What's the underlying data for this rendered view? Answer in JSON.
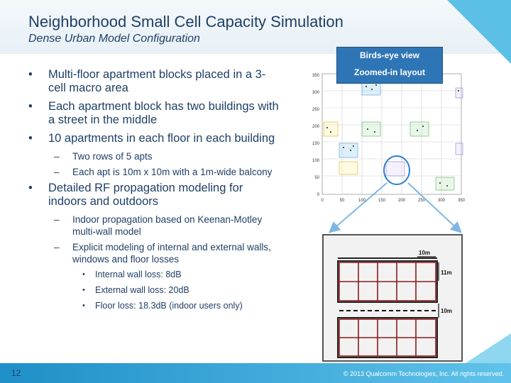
{
  "title": "Neighborhood Small Cell Capacity Simulation",
  "subtitle": "Dense Urban Model Configuration",
  "bullets": {
    "b1": "Multi-floor apartment blocks placed in a 3-cell macro area",
    "b2": "Each apartment block has two buildings with a street in the middle",
    "b3": "10 apartments in each floor in each building",
    "b3_1": "Two rows of 5 apts",
    "b3_2": "Each apt is 10m x 10m with a 1m-wide balcony",
    "b4": "Detailed RF propagation modeling for indoors and outdoors",
    "b4_1": "Indoor propagation based on Keenan-Motley multi-wall model",
    "b4_2": "Explicit modeling of internal and external walls, windows and floor losses",
    "b4_2_1": "Internal wall loss: 8dB",
    "b4_2_2": "External wall loss: 20dB",
    "b4_2_3": "Floor loss: 18.3dB (indoor users only)"
  },
  "view_labels": {
    "birds_eye": "Birds-eye view",
    "zoomed": "Zoomed-in layout"
  },
  "map": {
    "y_ticks": [
      "0",
      "50",
      "100",
      "150",
      "200",
      "250",
      "300",
      "350"
    ],
    "x_ticks": [
      "0",
      "50",
      "100",
      "150",
      "200",
      "250",
      "300",
      "350"
    ],
    "ylim": [
      0,
      350
    ],
    "xlim": [
      0,
      350
    ]
  },
  "dims": {
    "width": "10m",
    "depth": "11m",
    "street": "10m"
  },
  "footer": {
    "page": "12",
    "copyright": "© 2013 Qualcomm Technologies, Inc. All rights reserved."
  }
}
